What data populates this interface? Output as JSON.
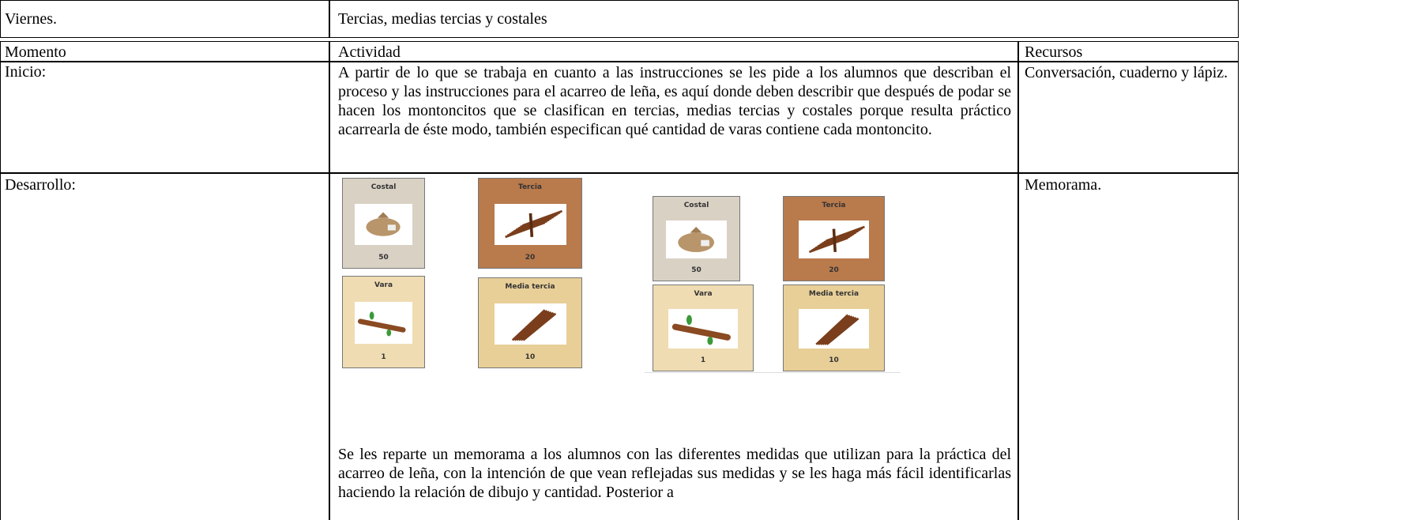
{
  "header": {
    "day": "Viernes.",
    "title": "Tercias, medias tercias y costales"
  },
  "table": {
    "columns": [
      "Momento",
      "Actividad",
      "Recursos"
    ],
    "rows": [
      {
        "moment": "Inicio:",
        "activity": "A partir de lo que se trabaja en cuanto a las instrucciones se les pide a los alumnos que describan el proceso y las instrucciones para el acarreo de leña, es aquí donde deben describir que después de podar se hacen los montoncitos que se clasifican en tercias, medias tercias y costales porque resulta práctico acarrearla de éste modo, también especifican qué cantidad de varas contiene cada montoncito.",
        "resources": "Conversación, cuaderno y lápiz."
      },
      {
        "moment": "Desarrollo:",
        "cards": [
          [
            {
              "label": "Costal",
              "value": "50"
            },
            {
              "label": "Tercia",
              "value": "20"
            },
            {
              "label": "Vara",
              "value": "1"
            },
            {
              "label": "Media tercia",
              "value": "10"
            }
          ],
          [
            {
              "label": "Costal",
              "value": "50"
            },
            {
              "label": "Tercia",
              "value": "20"
            },
            {
              "label": "Vara",
              "value": "1"
            },
            {
              "label": "Media tercia",
              "value": "10"
            }
          ]
        ],
        "activity": "Se les reparte un memorama a los alumnos con las diferentes medidas que utilizan para la práctica del acarreo de leña, con la intención de que vean reflejadas sus medidas y se les haga más fácil identificarlas haciendo la relación de dibujo y cantidad. Posterior a",
        "resources": "Memorama."
      }
    ]
  }
}
